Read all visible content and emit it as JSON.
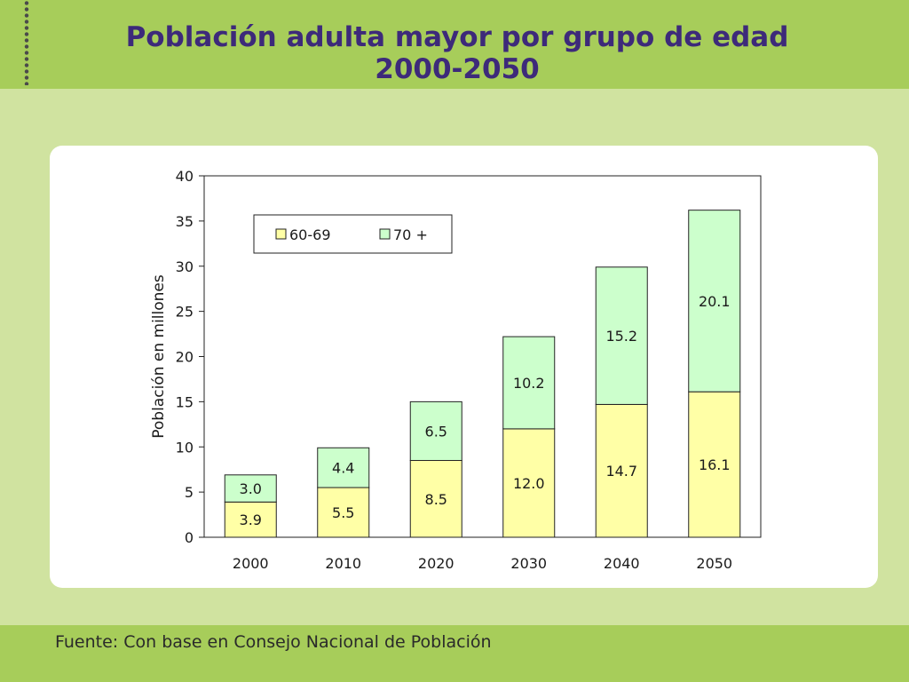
{
  "header": {
    "title_line1": "Población adulta mayor por grupo de edad",
    "title_line2": "2000-2050"
  },
  "footer": {
    "source": "Fuente: Con base en Consejo Nacional de Población"
  },
  "colors": {
    "header_bar": "#a7cd5a",
    "background": "#d0e3a0",
    "title": "#3d2a7a",
    "series_60_69": "#ffffa6",
    "series_70_plus": "#ccffcc"
  },
  "chart_data": {
    "type": "bar",
    "stacked": true,
    "categories": [
      "2000",
      "2010",
      "2020",
      "2030",
      "2040",
      "2050"
    ],
    "series": [
      {
        "name": "60-69",
        "values": [
          3.9,
          5.5,
          8.5,
          12.0,
          14.7,
          16.1
        ],
        "labels": [
          "3.9",
          "5.5",
          "8.5",
          "12.0",
          "14.7",
          "16.1"
        ],
        "color": "#ffffa6"
      },
      {
        "name": "70 +",
        "values": [
          3.0,
          4.4,
          6.5,
          10.2,
          15.2,
          20.1
        ],
        "labels": [
          "3.0",
          "4.4",
          "6.5",
          "10.2",
          "15.2",
          "20.1"
        ],
        "color": "#ccffcc"
      }
    ],
    "ylabel": "Población en millones",
    "ylim": [
      0,
      40
    ],
    "yticks": [
      "0",
      "5",
      "10",
      "15",
      "20",
      "25",
      "30",
      "35",
      "40"
    ],
    "grid": false,
    "legend_position": "top-left"
  }
}
